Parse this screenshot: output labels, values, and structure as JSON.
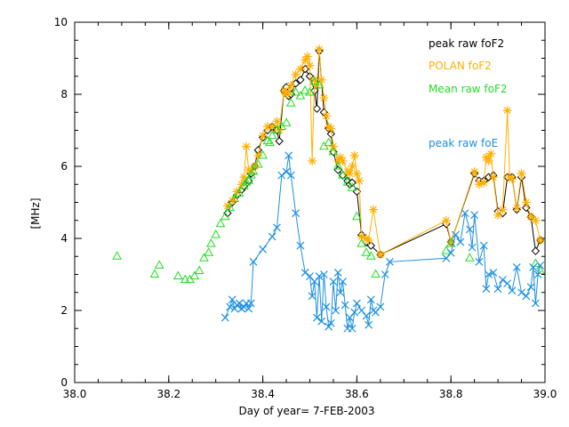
{
  "chart_data": {
    "type": "scatter",
    "title": "",
    "xlabel": "Day of year= 7-FEB-2003",
    "ylabel": "[MHz]",
    "xlim": [
      38.0,
      39.0
    ],
    "ylim": [
      0,
      10
    ],
    "xticks": [
      "38.0",
      "38.2",
      "38.4",
      "38.6",
      "38.8",
      "39.0"
    ],
    "xtick_values": [
      38.0,
      38.2,
      38.4,
      38.6,
      38.8,
      39.0
    ],
    "yticks": [
      "0",
      "2",
      "4",
      "6",
      "8",
      "10"
    ],
    "ytick_values": [
      0,
      2,
      4,
      6,
      8,
      10
    ],
    "grid": false,
    "legend": "top-right",
    "series": [
      {
        "name": "peak raw foF2",
        "color": "#000000",
        "marker": "diamond",
        "line": true,
        "x": [
          38.325,
          38.335,
          38.345,
          38.355,
          38.36,
          38.37,
          38.375,
          38.383,
          38.39,
          38.4,
          38.41,
          38.42,
          38.43,
          38.435,
          38.445,
          38.45,
          38.455,
          38.46,
          38.47,
          38.48,
          38.49,
          38.5,
          38.51,
          38.515,
          38.52,
          38.53,
          38.54,
          38.545,
          38.55,
          38.56,
          38.57,
          38.58,
          38.585,
          38.59,
          38.6,
          38.61,
          38.62,
          38.63,
          38.65,
          38.79,
          38.8,
          38.85,
          38.86,
          38.87,
          38.88,
          38.89,
          38.9,
          38.91,
          38.92,
          38.93,
          38.94,
          38.95,
          38.96,
          38.97,
          38.98,
          38.99
        ],
        "y": [
          4.7,
          5.0,
          5.2,
          5.35,
          5.45,
          5.6,
          5.8,
          6.0,
          6.45,
          6.8,
          7.0,
          7.1,
          7.0,
          6.7,
          8.1,
          8.2,
          7.95,
          8.0,
          8.3,
          8.4,
          8.7,
          8.5,
          8.1,
          7.6,
          9.2,
          7.5,
          7.05,
          6.9,
          6.4,
          5.9,
          5.75,
          5.6,
          5.5,
          5.55,
          5.3,
          4.1,
          3.9,
          3.8,
          3.55,
          4.4,
          3.9,
          5.8,
          5.6,
          5.6,
          5.7,
          5.75,
          4.75,
          4.7,
          5.7,
          5.7,
          4.8,
          5.7,
          4.85,
          4.6,
          3.65,
          3.95
        ]
      },
      {
        "name": "POLAN foF2",
        "color": "#ffb000",
        "marker": "asterisk",
        "line": true,
        "x": [
          38.325,
          38.335,
          38.345,
          38.355,
          38.36,
          38.365,
          38.37,
          38.375,
          38.383,
          38.39,
          38.4,
          38.41,
          38.42,
          38.43,
          38.435,
          38.445,
          38.45,
          38.455,
          38.46,
          38.47,
          38.48,
          38.49,
          38.495,
          38.5,
          38.505,
          38.51,
          38.515,
          38.52,
          38.525,
          38.53,
          38.535,
          38.54,
          38.545,
          38.55,
          38.56,
          38.565,
          38.57,
          38.58,
          38.585,
          38.59,
          38.595,
          38.6,
          38.605,
          38.61,
          38.62,
          38.625,
          38.635,
          38.65,
          38.79,
          38.8,
          38.85,
          38.86,
          38.87,
          38.875,
          38.88,
          38.885,
          38.89,
          38.9,
          38.91,
          38.92,
          38.925,
          38.93,
          38.94,
          38.95,
          38.96,
          38.97,
          38.98,
          38.99
        ],
        "y": [
          4.9,
          5.05,
          5.3,
          5.5,
          5.7,
          6.55,
          5.9,
          5.9,
          6.0,
          6.3,
          6.85,
          7.1,
          7.1,
          7.25,
          7.0,
          8.1,
          8.0,
          8.05,
          8.25,
          8.55,
          8.7,
          8.95,
          9.05,
          8.8,
          6.15,
          8.4,
          8.25,
          9.25,
          8.4,
          7.9,
          7.4,
          7.1,
          7.05,
          6.55,
          6.15,
          6.25,
          6.15,
          5.85,
          5.8,
          6.0,
          6.3,
          5.8,
          5.6,
          4.05,
          4.0,
          3.95,
          4.8,
          3.55,
          4.5,
          3.9,
          5.85,
          5.5,
          5.55,
          6.25,
          6.15,
          6.35,
          5.7,
          4.65,
          4.8,
          7.55,
          5.7,
          5.65,
          4.85,
          5.8,
          5.0,
          4.6,
          4.5,
          3.95
        ]
      },
      {
        "name": "Mean raw foF2",
        "color": "#22dd22",
        "marker": "triangle",
        "line": false,
        "x": [
          38.09,
          38.17,
          38.18,
          38.22,
          38.235,
          38.245,
          38.255,
          38.265,
          38.275,
          38.285,
          38.29,
          38.3,
          38.31,
          38.32,
          38.33,
          38.34,
          38.35,
          38.36,
          38.365,
          38.37,
          38.375,
          38.38,
          38.39,
          38.4,
          38.41,
          38.415,
          38.42,
          38.43,
          38.44,
          38.45,
          38.46,
          38.47,
          38.48,
          38.49,
          38.5,
          38.51,
          38.52,
          38.53,
          38.54,
          38.55,
          38.56,
          38.57,
          38.58,
          38.59,
          38.6,
          38.61,
          38.62,
          38.63,
          38.64,
          38.79,
          38.8,
          38.84,
          38.98,
          38.99
        ],
        "y": [
          3.5,
          3.0,
          3.25,
          2.95,
          2.85,
          2.85,
          2.95,
          3.1,
          3.45,
          3.6,
          3.85,
          4.1,
          4.4,
          4.6,
          4.85,
          5.1,
          5.25,
          5.45,
          5.55,
          5.6,
          5.75,
          5.85,
          6.05,
          6.3,
          6.7,
          6.65,
          6.85,
          7.0,
          7.1,
          7.2,
          7.75,
          8.05,
          7.95,
          8.1,
          8.05,
          8.35,
          8.25,
          6.55,
          6.65,
          6.4,
          6.0,
          5.75,
          5.55,
          5.4,
          4.6,
          3.85,
          3.6,
          3.5,
          3.0,
          3.65,
          3.85,
          3.45,
          3.3,
          3.1
        ]
      },
      {
        "name": "peak raw foE",
        "color": "#1e90e0",
        "marker": "x",
        "line": true,
        "x": [
          38.32,
          38.33,
          38.335,
          38.34,
          38.345,
          38.35,
          38.355,
          38.36,
          38.365,
          38.37,
          38.375,
          38.38,
          38.4,
          38.42,
          38.43,
          38.44,
          38.45,
          38.455,
          38.46,
          38.47,
          38.48,
          38.49,
          38.5,
          38.505,
          38.51,
          38.515,
          38.52,
          38.525,
          38.53,
          38.535,
          38.54,
          38.545,
          38.55,
          38.555,
          38.56,
          38.565,
          38.57,
          38.575,
          38.58,
          38.585,
          38.59,
          38.595,
          38.6,
          38.61,
          38.62,
          38.625,
          38.63,
          38.635,
          38.64,
          38.65,
          38.66,
          38.67,
          38.79,
          38.8,
          38.81,
          38.82,
          38.83,
          38.84,
          38.845,
          38.85,
          38.86,
          38.87,
          38.875,
          38.88,
          38.89,
          38.9,
          38.91,
          38.92,
          38.93,
          38.94,
          38.95,
          38.96,
          38.97,
          38.975,
          38.98,
          38.985,
          38.99
        ],
        "y": [
          1.8,
          2.1,
          2.3,
          2.05,
          2.15,
          2.2,
          2.05,
          2.1,
          2.2,
          2.05,
          2.2,
          3.35,
          3.7,
          4.05,
          4.3,
          5.75,
          5.85,
          6.3,
          5.75,
          4.7,
          3.8,
          3.05,
          2.95,
          2.4,
          2.8,
          1.8,
          2.95,
          1.7,
          3.0,
          2.1,
          1.55,
          1.65,
          2.8,
          2.0,
          3.05,
          2.5,
          2.8,
          2.15,
          1.5,
          1.8,
          1.5,
          1.95,
          2.2,
          2.0,
          1.85,
          1.6,
          2.3,
          2.0,
          1.95,
          2.1,
          3.0,
          3.35,
          3.45,
          3.6,
          4.1,
          3.9,
          4.7,
          4.25,
          3.75,
          4.65,
          3.35,
          3.8,
          2.6,
          3.0,
          3.05,
          2.6,
          2.85,
          2.75,
          2.55,
          3.2,
          2.5,
          2.4,
          2.65,
          3.2,
          2.2,
          3.0,
          3.25
        ]
      }
    ]
  }
}
